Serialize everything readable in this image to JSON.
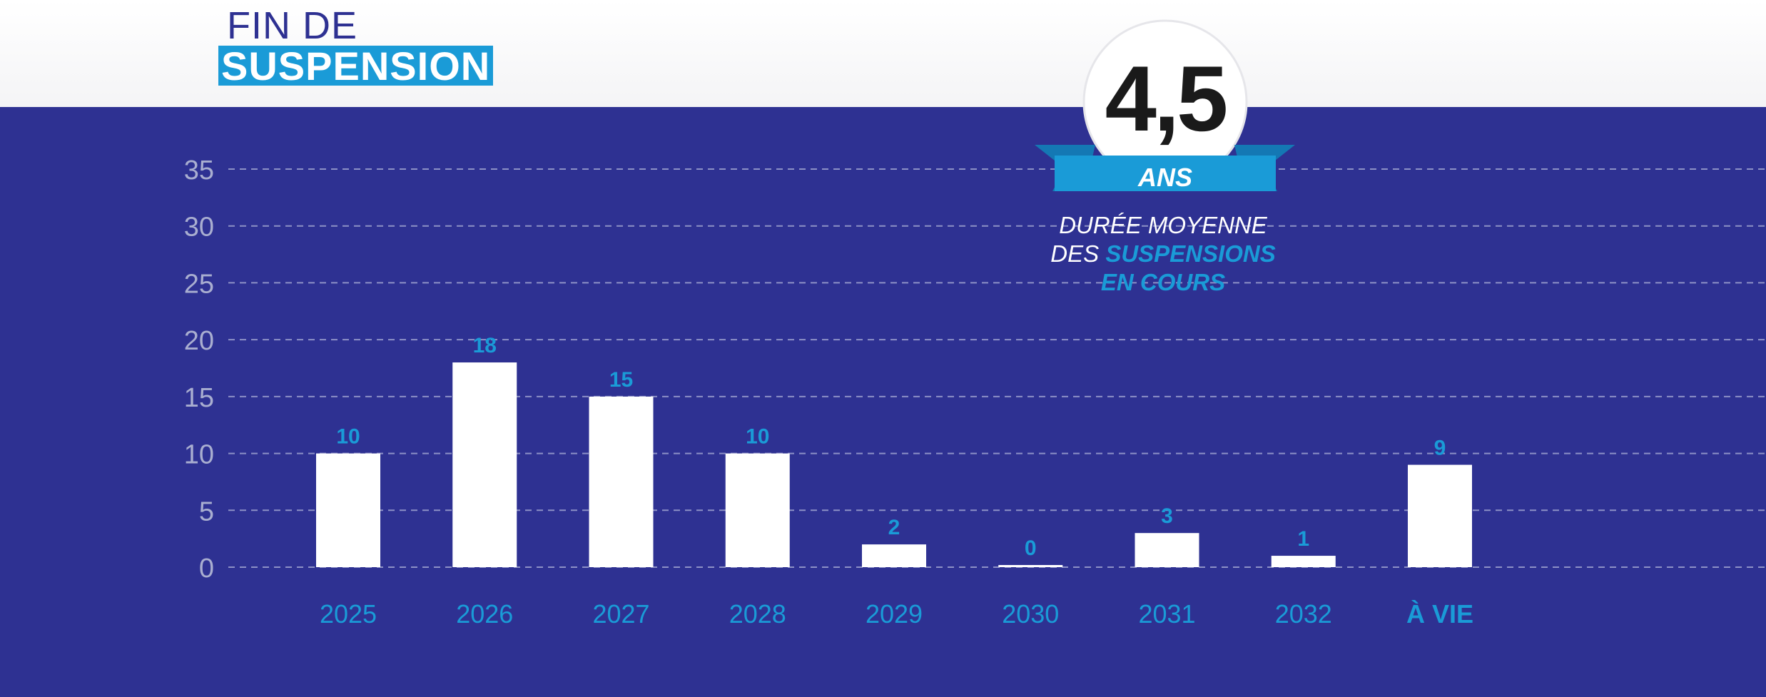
{
  "title": {
    "line1": "FIN DE",
    "line2": "SUSPENSION"
  },
  "badge": {
    "value": "4,5",
    "unit": "ANS",
    "caption_line1": "DURÉE MOYENNE",
    "caption_line2_plain": "DES",
    "caption_line2_highlight": "SUSPENSIONS",
    "caption_line3_highlight": "EN COURS"
  },
  "colors": {
    "background": "#2e3192",
    "accent": "#1a9bd7",
    "bar": "#ffffff",
    "tick_label": "#a9aed0",
    "grid": "#8d91c6"
  },
  "chart_data": {
    "type": "bar",
    "categories": [
      "2025",
      "2026",
      "2027",
      "2028",
      "2029",
      "2030",
      "2031",
      "2032",
      "À VIE"
    ],
    "values": [
      10,
      18,
      15,
      10,
      2,
      0,
      3,
      1,
      9
    ],
    "data_labels": [
      "10",
      "18",
      "15",
      "10",
      "2",
      "0",
      "3",
      "1",
      "9"
    ],
    "ylim": [
      0,
      35
    ],
    "yticks": [
      0,
      5,
      10,
      15,
      20,
      25,
      30,
      35
    ],
    "grid": true,
    "title": "",
    "xlabel": "",
    "ylabel": ""
  }
}
